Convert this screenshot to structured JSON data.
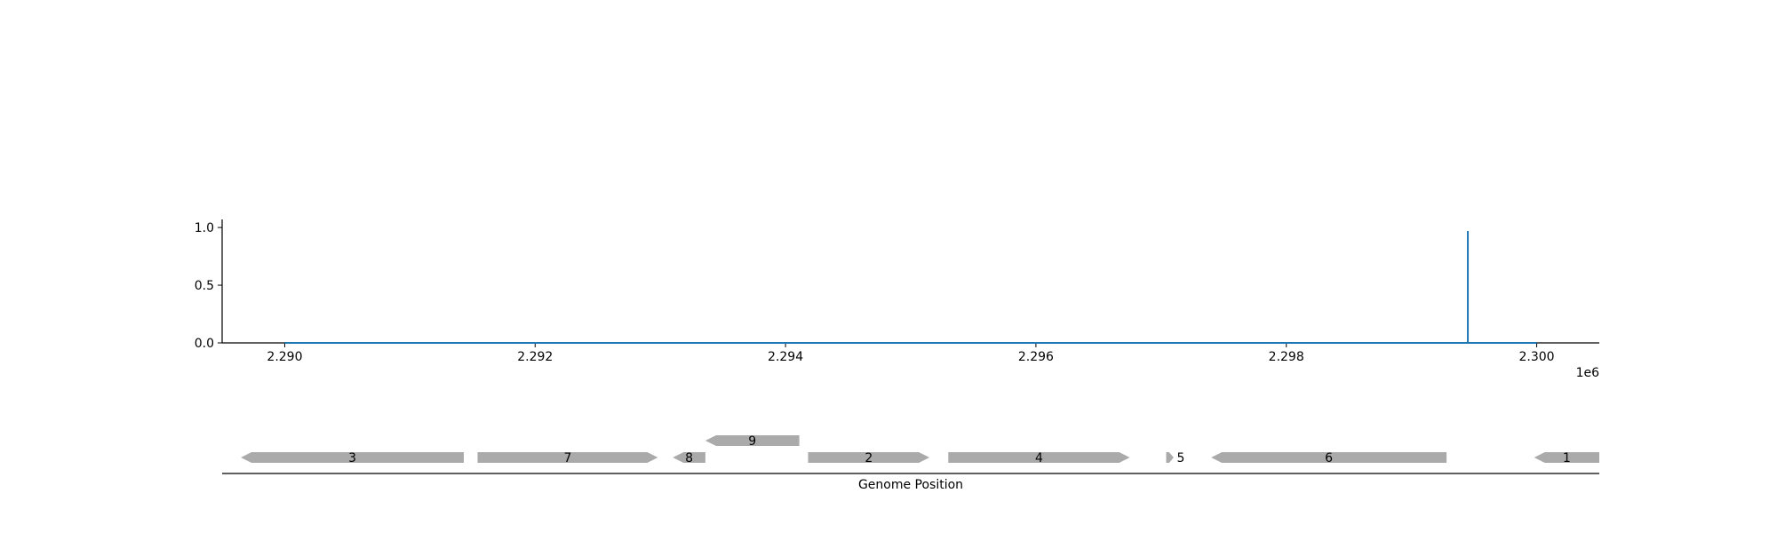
{
  "chart_data": {
    "type": "line",
    "x_offset_label": "1e6",
    "x_ticks": [
      2290000,
      2292000,
      2294000,
      2296000,
      2298000,
      2300000
    ],
    "x_tick_labels": [
      "2.290",
      "2.292",
      "2.294",
      "2.296",
      "2.298",
      "2.300"
    ],
    "xlim": [
      2289500,
      2300500
    ],
    "y_ticks": [
      0.0,
      0.5,
      1.0
    ],
    "y_tick_labels": [
      "0.0",
      "0.5",
      "1.0"
    ],
    "ylim": [
      0,
      1.07
    ],
    "series": [
      {
        "color": "#1f77b4",
        "x": [
          2290000,
          2299450,
          2299450,
          2299450,
          2300000
        ],
        "y": [
          0,
          0,
          0.97,
          0,
          0
        ]
      }
    ],
    "xlabel": "Genome Position",
    "genes": [
      {
        "label": "3",
        "start": 2289650,
        "end": 2291430,
        "strand": "-",
        "row": 0
      },
      {
        "label": "7",
        "start": 2291540,
        "end": 2292980,
        "strand": "+",
        "row": 0
      },
      {
        "label": "8",
        "start": 2293100,
        "end": 2293360,
        "strand": "-",
        "row": 0
      },
      {
        "label": "9",
        "start": 2293360,
        "end": 2294110,
        "strand": "-",
        "row": 1
      },
      {
        "label": "2",
        "start": 2294180,
        "end": 2295150,
        "strand": "+",
        "row": 0
      },
      {
        "label": "4",
        "start": 2295300,
        "end": 2296750,
        "strand": "+",
        "row": 0
      },
      {
        "label": "5",
        "start": 2297040,
        "end": 2297100,
        "strand": "+",
        "row": 0
      },
      {
        "label": "6",
        "start": 2297400,
        "end": 2299280,
        "strand": "-",
        "row": 0
      },
      {
        "label": "1",
        "start": 2299980,
        "end": 2300500,
        "strand": "-",
        "row": 0
      }
    ],
    "gene_color": "#aaaaaa",
    "grid": false
  }
}
